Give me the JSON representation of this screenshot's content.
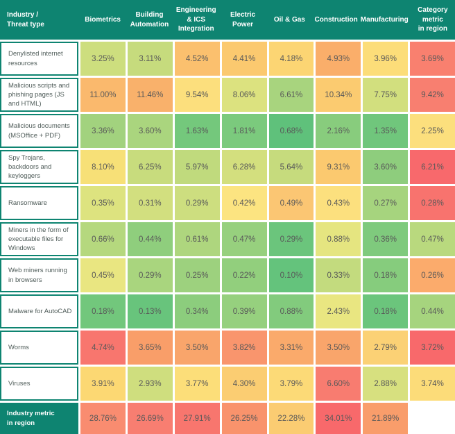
{
  "palette": {
    "header_bg": "#0E8471",
    "label_border": "#0E8471",
    "label_text": "#4E5B58",
    "value_text": "#595959",
    "background": "#FFFFFF"
  },
  "header": {
    "corner_label": "Industry /\nThreat type",
    "columns": [
      "Biometrics",
      "Building\nAutomation",
      "Engineering & ICS\nIntegration",
      "Electric Power",
      "Oil & Gas",
      "Construction",
      "Manufacturing",
      "Category metric\nin region"
    ]
  },
  "rows": [
    {
      "label": "Denylisted internet resources",
      "values": [
        "3.25%",
        "3.11%",
        "4.52%",
        "4.41%",
        "4.18%",
        "4.93%",
        "3.96%",
        "3.69%"
      ],
      "colors": [
        "#CDDE7E",
        "#C6DB7D",
        "#FBC06E",
        "#FBC96F",
        "#FCD573",
        "#FAAE6A",
        "#FCDD79",
        "#F9806F"
      ]
    },
    {
      "label": "Malicious scripts and phishing pages (JS and HTML)",
      "values": [
        "11.00%",
        "11.46%",
        "9.54%",
        "8.06%",
        "6.61%",
        "10.34%",
        "7.75%",
        "9.42%"
      ],
      "colors": [
        "#FAB96D",
        "#F9B16B",
        "#FCDF7D",
        "#DCE27F",
        "#A8D47E",
        "#FBCB70",
        "#D2DF7E",
        "#F87F70"
      ]
    },
    {
      "label": "Malicious documents (MSOffice + PDF)",
      "values": [
        "3.36%",
        "3.60%",
        "1.63%",
        "1.81%",
        "0.68%",
        "2.16%",
        "1.35%",
        "2.25%"
      ],
      "colors": [
        "#A2D27E",
        "#AAD57E",
        "#74C87C",
        "#7BCA7D",
        "#5FC17B",
        "#88CC7D",
        "#70C67C",
        "#FCDF7D"
      ]
    },
    {
      "label": "Spy Trojans, backdoors and keyloggers",
      "values": [
        "8.10%",
        "6.25%",
        "5.97%",
        "6.28%",
        "5.64%",
        "9.31%",
        "3.60%",
        "6.21%"
      ],
      "colors": [
        "#F7E077",
        "#C8DC7D",
        "#C0DA7D",
        "#D3DF7E",
        "#C6DB7D",
        "#FBC96F",
        "#8ECD7D",
        "#F8696C"
      ]
    },
    {
      "label": "Ransomware",
      "values": [
        "0.35%",
        "0.31%",
        "0.29%",
        "0.42%",
        "0.49%",
        "0.43%",
        "0.27%",
        "0.28%"
      ],
      "colors": [
        "#DDE37F",
        "#D2DF7F",
        "#CDDE7F",
        "#FCE481",
        "#FBC673",
        "#FCE07E",
        "#A6D47E",
        "#F8736E"
      ]
    },
    {
      "label": "Miners in the form of executable files for Windows",
      "values": [
        "0.66%",
        "0.44%",
        "0.61%",
        "0.47%",
        "0.29%",
        "0.88%",
        "0.36%",
        "0.47%"
      ],
      "colors": [
        "#B5D87E",
        "#8FCE7D",
        "#AED67E",
        "#97D07E",
        "#6BC57C",
        "#E5E580",
        "#7FCA7D",
        "#B9D97E"
      ]
    },
    {
      "label": "Web miners running in browsers",
      "values": [
        "0.45%",
        "0.29%",
        "0.25%",
        "0.22%",
        "0.10%",
        "0.33%",
        "0.18%",
        "0.26%"
      ],
      "colors": [
        "#E9E681",
        "#A9D57E",
        "#9DD17E",
        "#92CF7D",
        "#64C37C",
        "#C3DB7E",
        "#86CC7D",
        "#FBAB6C"
      ]
    },
    {
      "label": "Malware for AutoCAD",
      "values": [
        "0.18%",
        "0.13%",
        "0.34%",
        "0.39%",
        "0.88%",
        "2.43%",
        "0.18%",
        "0.44%"
      ],
      "colors": [
        "#72C77C",
        "#68C47C",
        "#8CCD7D",
        "#96D07E",
        "#82CB7D",
        "#E9E681",
        "#6BC57C",
        "#A6D47E"
      ]
    },
    {
      "label": "Worms",
      "values": [
        "4.74%",
        "3.65%",
        "3.50%",
        "3.82%",
        "3.31%",
        "3.50%",
        "2.79%",
        "3.72%"
      ],
      "colors": [
        "#F8766E",
        "#F99E69",
        "#F9A56B",
        "#F9956D",
        "#FAAA6B",
        "#F9A56B",
        "#FBD175",
        "#F8696B"
      ]
    },
    {
      "label": "Viruses",
      "values": [
        "3.91%",
        "2.93%",
        "3.77%",
        "4.30%",
        "3.79%",
        "6.60%",
        "2.88%",
        "3.74%"
      ],
      "colors": [
        "#FCD873",
        "#CFDE7E",
        "#FCDE79",
        "#FBCD72",
        "#FCDA77",
        "#F87C70",
        "#D7E07F",
        "#FCDC79"
      ]
    }
  ],
  "footer": {
    "label": "Industry metric\nin region",
    "values": [
      "28.76%",
      "26.69%",
      "27.91%",
      "26.25%",
      "22.28%",
      "34.01%",
      "21.89%"
    ],
    "colors": [
      "#F98C70",
      "#F87E71",
      "#F8766E",
      "#F9936C",
      "#FBCC72",
      "#F8696B",
      "#F99D6B"
    ]
  },
  "chart_data": {
    "type": "heatmap",
    "unit": "%",
    "columns": [
      "Biometrics",
      "Building Automation",
      "Engineering & ICS Integration",
      "Electric Power",
      "Oil & Gas",
      "Construction",
      "Manufacturing",
      "Category metric in region"
    ],
    "rows": [
      "Denylisted internet resources",
      "Malicious scripts and phishing pages (JS and HTML)",
      "Malicious documents (MSOffice + PDF)",
      "Spy Trojans, backdoors and keyloggers",
      "Ransomware",
      "Miners in the form of executable files for Windows",
      "Web miners running in browsers",
      "Malware for AutoCAD",
      "Worms",
      "Viruses",
      "Industry metric in region"
    ],
    "values": [
      [
        3.25,
        3.11,
        4.52,
        4.41,
        4.18,
        4.93,
        3.96,
        3.69
      ],
      [
        11.0,
        11.46,
        9.54,
        8.06,
        6.61,
        10.34,
        7.75,
        9.42
      ],
      [
        3.36,
        3.6,
        1.63,
        1.81,
        0.68,
        2.16,
        1.35,
        2.25
      ],
      [
        8.1,
        6.25,
        5.97,
        6.28,
        5.64,
        9.31,
        3.6,
        6.21
      ],
      [
        0.35,
        0.31,
        0.29,
        0.42,
        0.49,
        0.43,
        0.27,
        0.28
      ],
      [
        0.66,
        0.44,
        0.61,
        0.47,
        0.29,
        0.88,
        0.36,
        0.47
      ],
      [
        0.45,
        0.29,
        0.25,
        0.22,
        0.1,
        0.33,
        0.18,
        0.26
      ],
      [
        0.18,
        0.13,
        0.34,
        0.39,
        0.88,
        2.43,
        0.18,
        0.44
      ],
      [
        4.74,
        3.65,
        3.5,
        3.82,
        3.31,
        3.5,
        2.79,
        3.72
      ],
      [
        3.91,
        2.93,
        3.77,
        4.3,
        3.79,
        6.6,
        2.88,
        3.74
      ],
      [
        28.76,
        26.69,
        27.91,
        26.25,
        22.28,
        34.01,
        21.89,
        null
      ]
    ],
    "color_scale": "red-yellow-green",
    "legend_position": "none",
    "grid": "white 3px gaps between cells"
  }
}
